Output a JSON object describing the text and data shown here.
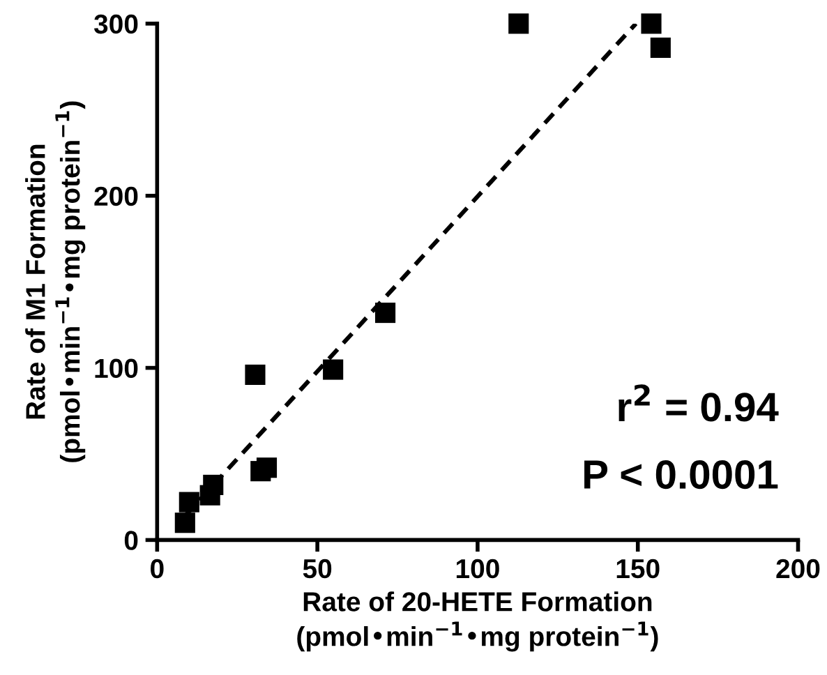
{
  "chart_data": {
    "type": "scatter",
    "xlabel": "Rate of 20-HETE Formation\n(pmol•min$^{−1}$•mg protein$^{−1}$)",
    "ylabel": "Rate of M1 Formation\n(pmol•min$^{−1}$•mg protein$^{−1}$)",
    "xlim": [
      0,
      200
    ],
    "xticks": [
      0,
      50,
      100,
      150,
      200
    ],
    "ylim": [
      0,
      300
    ],
    "yticks": [
      0,
      100,
      200,
      300
    ],
    "grid": false,
    "legend": false,
    "series": [
      {
        "marker": "square",
        "color": "#000000",
        "x": [
          8.7,
          10,
          16.5,
          17.5,
          30.6,
          32.3,
          34.2,
          54.9,
          71.2,
          112.8,
          154.2,
          157.1
        ],
        "values": [
          10,
          22,
          26,
          32,
          96,
          40,
          42,
          99,
          132,
          300,
          300,
          286
        ]
      },
      {
        "type": "line",
        "marker": "none",
        "line_style": "dashed",
        "color": "#000000",
        "x": [
          8.7,
          149.4
        ],
        "values": [
          14,
          300
        ]
      }
    ],
    "annotations": [
      "r$^{2}$ = 0.94",
      "P < 0.0001"
    ]
  }
}
